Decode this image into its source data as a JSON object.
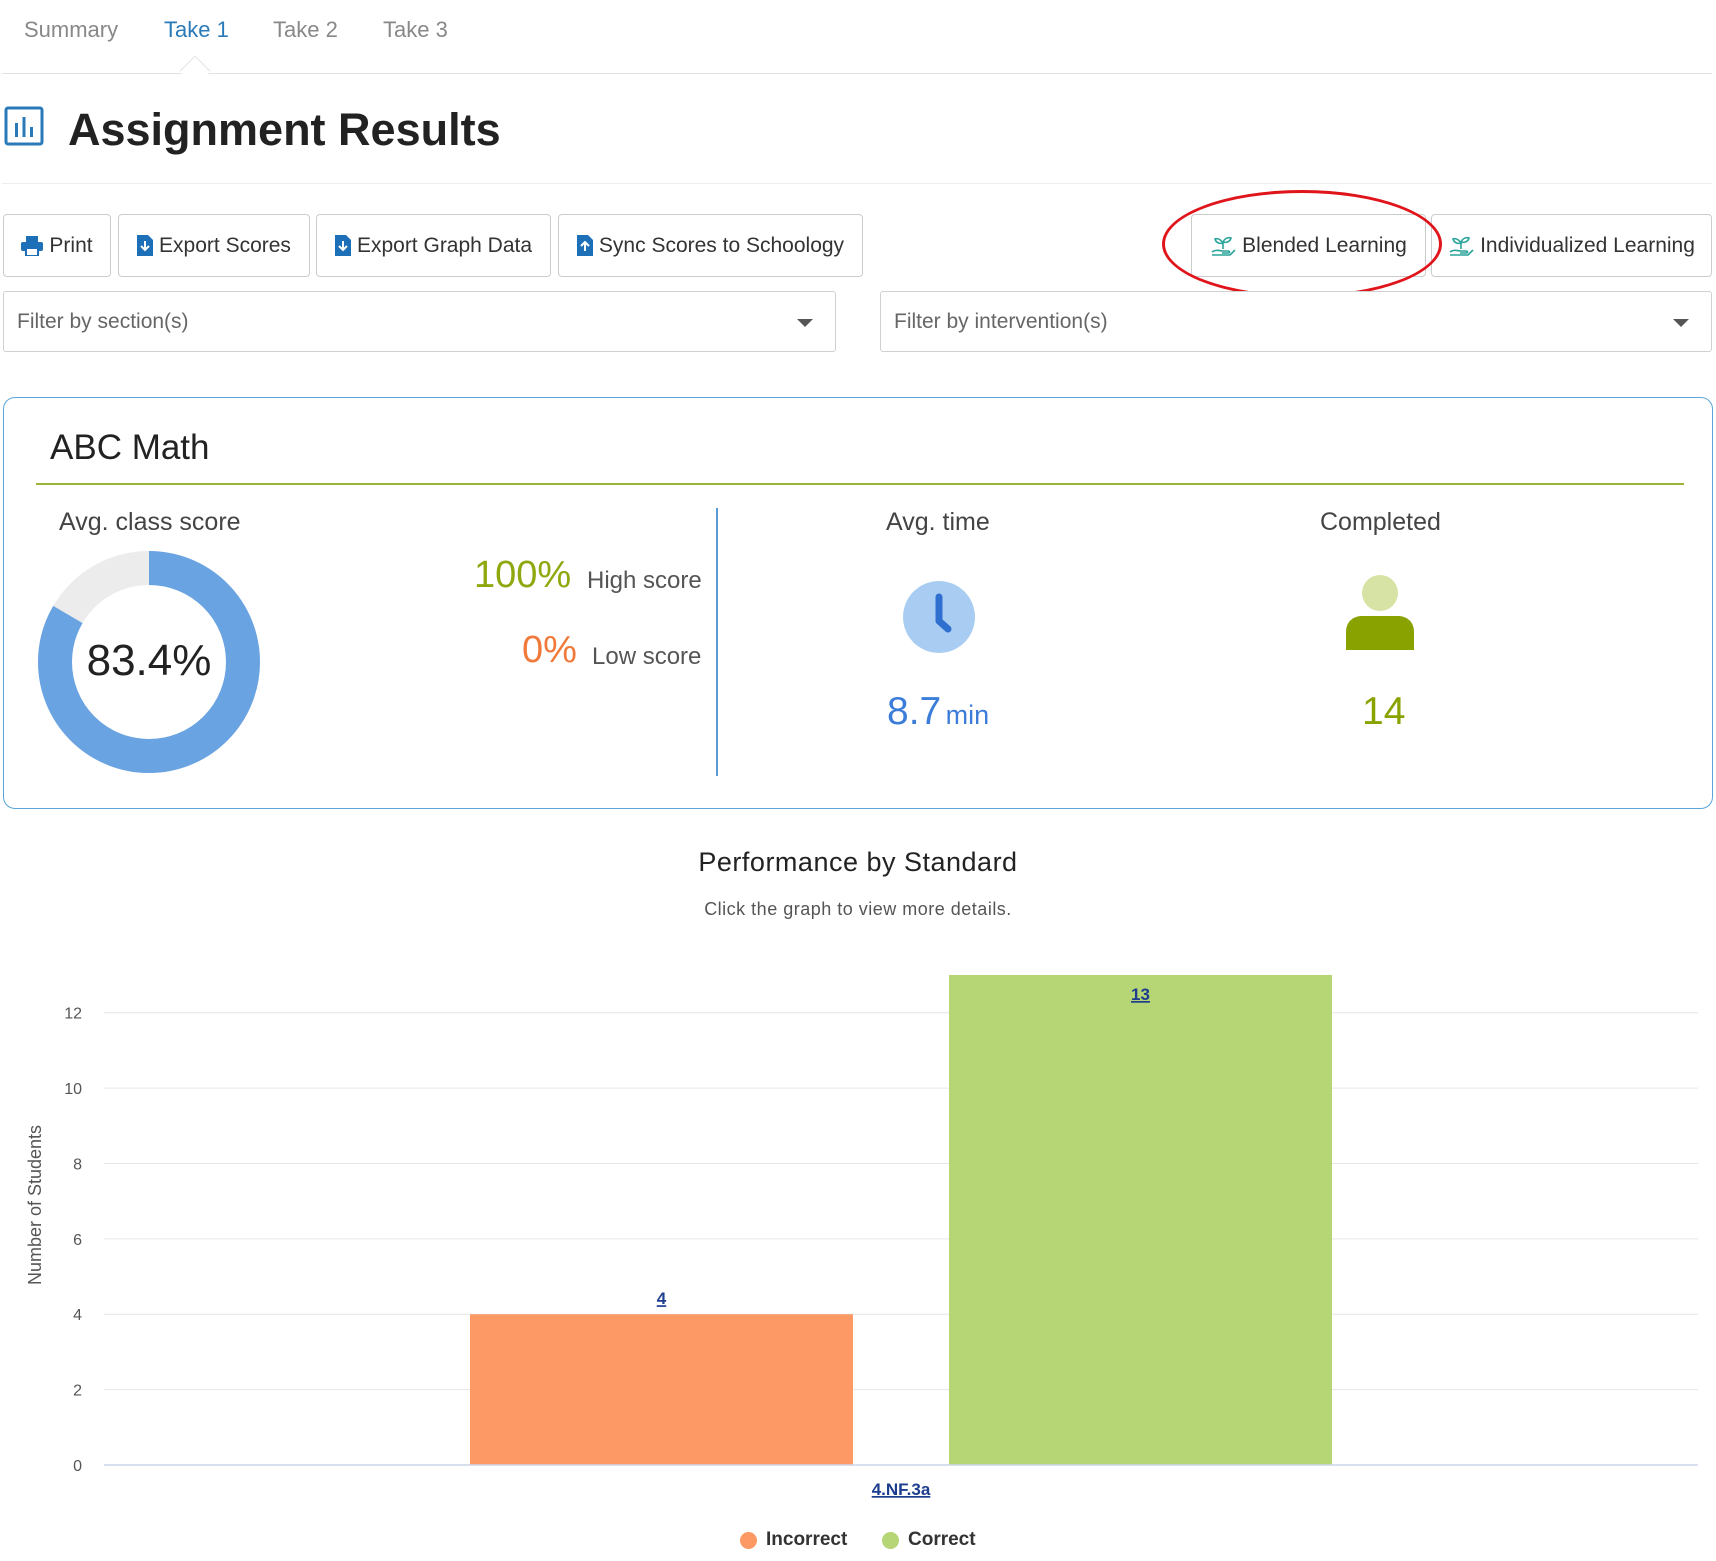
{
  "tabs": [
    {
      "label": "Summary",
      "active": false
    },
    {
      "label": "Take 1",
      "active": true
    },
    {
      "label": "Take 2",
      "active": false
    },
    {
      "label": "Take 3",
      "active": false
    }
  ],
  "header": {
    "title": "Assignment Results",
    "icon": "bar-chart-icon"
  },
  "toolbar": {
    "print": "Print",
    "export_scores": "Export Scores",
    "export_graph": "Export Graph Data",
    "sync": "Sync Scores to Schoology",
    "blended": "Blended Learning",
    "individualized": "Individualized Learning"
  },
  "filters": {
    "section": "Filter by section(s)",
    "intervention": "Filter by intervention(s)"
  },
  "summary": {
    "class_name": "ABC Math",
    "avg_score_label": "Avg. class score",
    "avg_score": "83.4%",
    "avg_score_fraction": 0.834,
    "high_value": "100%",
    "high_label": "High score",
    "low_value": "0%",
    "low_label": "Low score",
    "avg_time_label": "Avg. time",
    "avg_time_value": "8.7",
    "avg_time_unit": "min",
    "completed_label": "Completed",
    "completed_value": "14"
  },
  "colors": {
    "accent": "#2a7ab8",
    "donut": "#6aa3e2",
    "high": "#8fa80f",
    "low": "#f07a3c",
    "time": "#3b7dd8",
    "completed": "#8aa200",
    "incorrect": "#fd9965",
    "correct": "#b6d574",
    "highlight": "#e0141b"
  },
  "chart": {
    "title": "Performance by Standard",
    "subtitle": "Click the graph to view more details."
  },
  "chart_data": {
    "type": "bar",
    "categories": [
      "4.NF.3a"
    ],
    "series": [
      {
        "name": "Incorrect",
        "values": [
          4
        ]
      },
      {
        "name": "Correct",
        "values": [
          13
        ]
      }
    ],
    "ylabel": "Number of Students",
    "xlabel": "",
    "ylim": [
      0,
      13
    ],
    "yticks": [
      0,
      2,
      4,
      6,
      8,
      10,
      12
    ],
    "grid": true,
    "legend": "bottom-center"
  }
}
